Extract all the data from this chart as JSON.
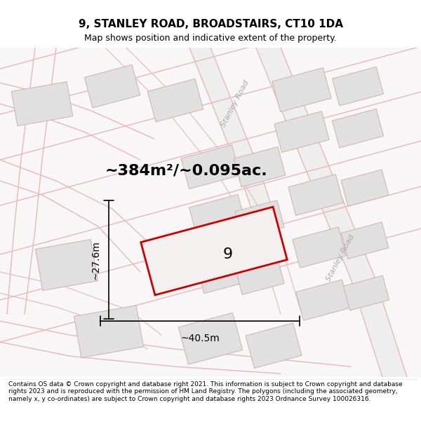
{
  "title": "9, STANLEY ROAD, BROADSTAIRS, CT10 1DA",
  "subtitle": "Map shows position and indicative extent of the property.",
  "area_text": "~384m²/~0.095ac.",
  "label_9": "9",
  "dim_width": "~40.5m",
  "dim_height": "~27.6m",
  "road_label": "Stanley Road",
  "footer": "Contains OS data © Crown copyright and database right 2021. This information is subject to Crown copyright and database rights 2023 and is reproduced with the permission of HM Land Registry. The polygons (including the associated geometry, namely x, y co-ordinates) are subject to Crown copyright and database rights 2023 Ordnance Survey 100026316.",
  "bg_color": "#ffffff",
  "map_bg": "#f7f5f5",
  "road_line_color": "#e8b8b8",
  "road_fill_color": "#eeeeee",
  "building_fill": "#e0e0e0",
  "building_edge": "#d0b0b0",
  "highlight_color": "#cc0000",
  "highlight_fill": "#f8f4f4",
  "title_fontsize": 11,
  "subtitle_fontsize": 9,
  "area_fontsize": 16,
  "dim_fontsize": 10,
  "footer_fontsize": 6.5
}
